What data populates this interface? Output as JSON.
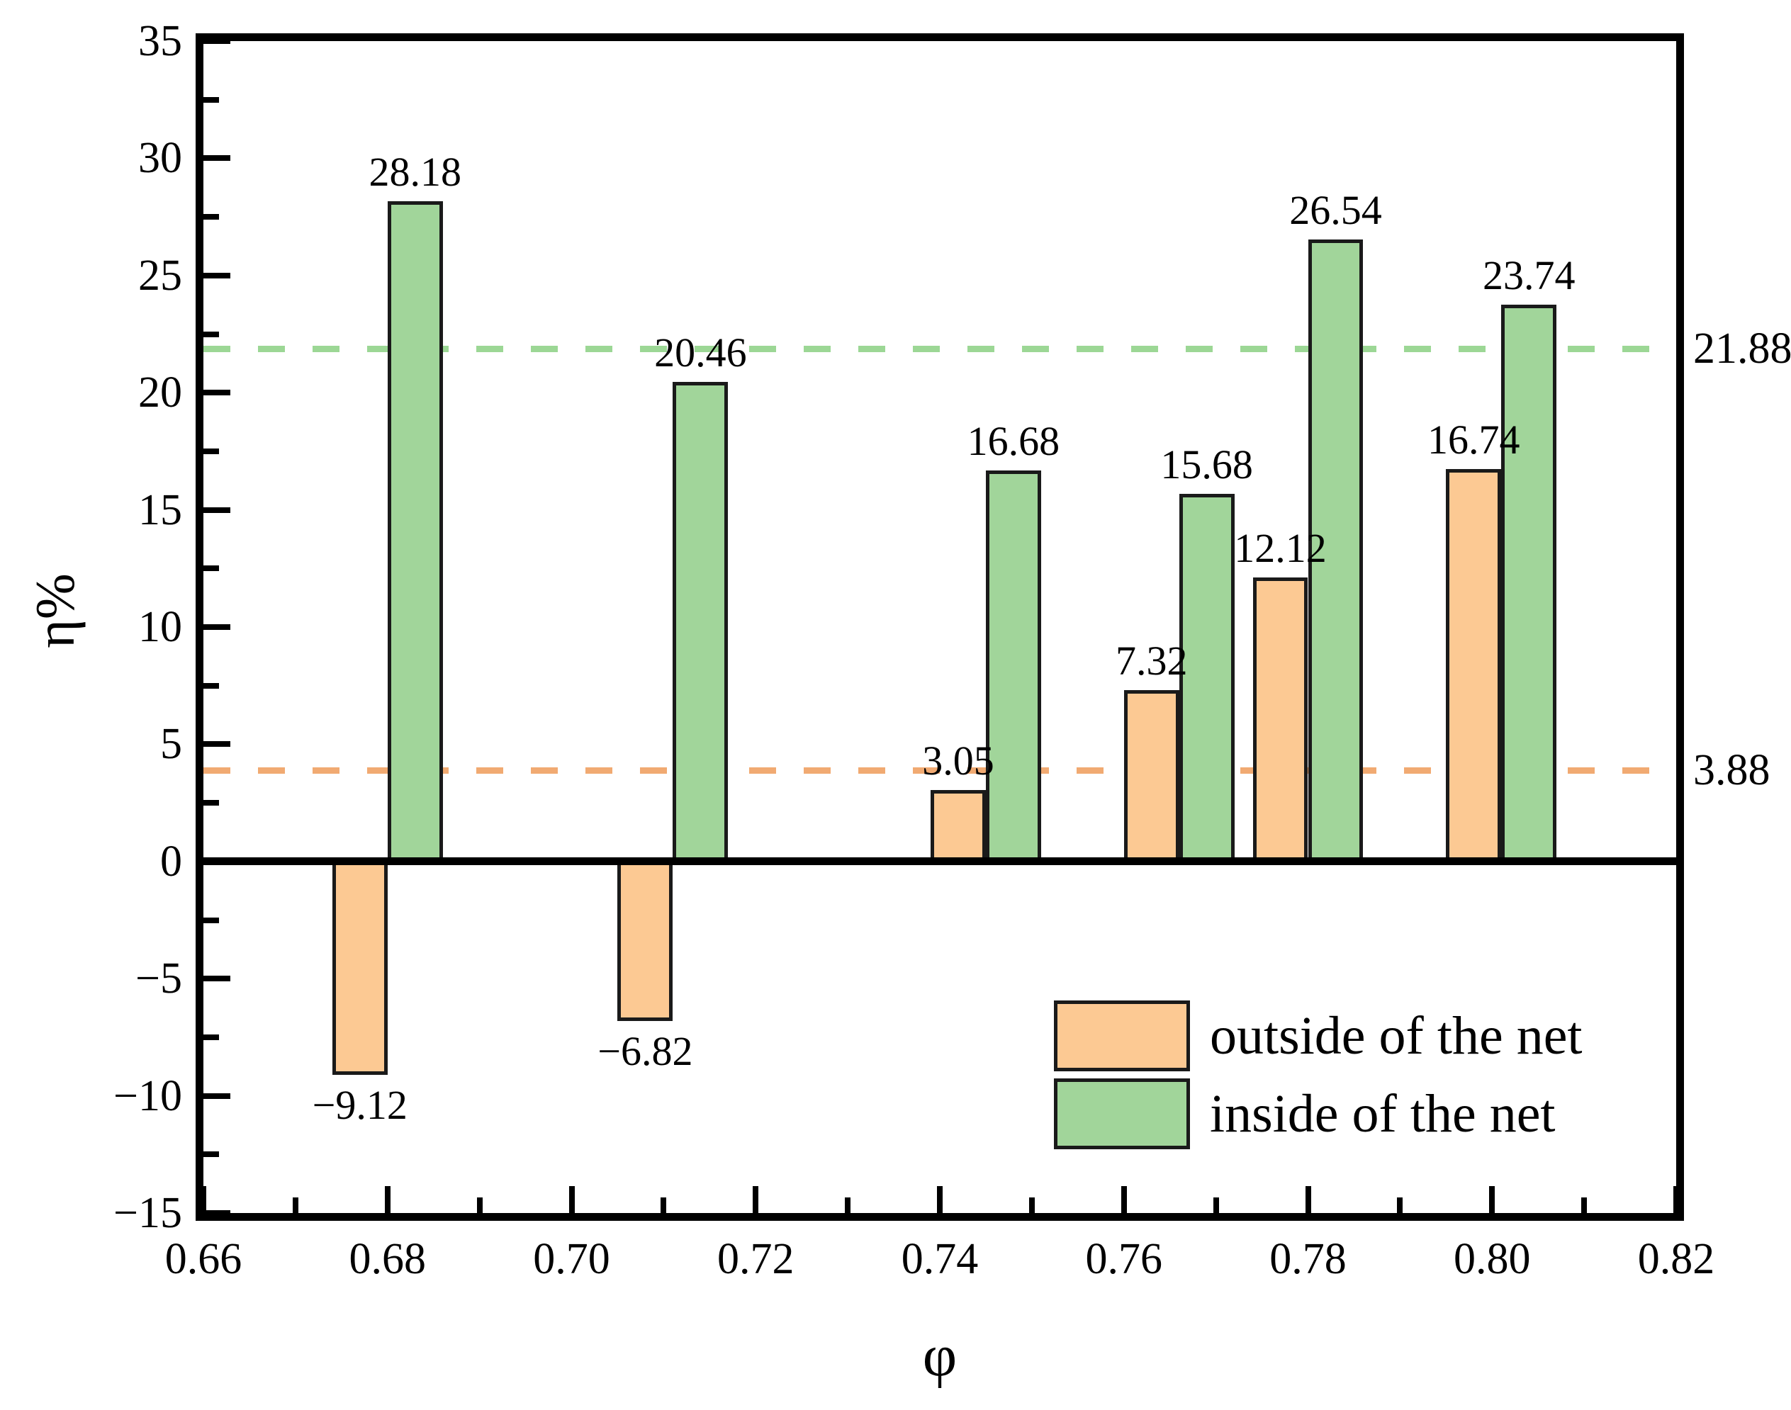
{
  "figure": {
    "background": "#ffffff",
    "axis_color": "#000000",
    "bar_edge_color": "#1a1a1a"
  },
  "chart_data": {
    "type": "bar",
    "title": "",
    "xlabel": "φ",
    "ylabel": "η%",
    "xlim": [
      0.66,
      0.82
    ],
    "ylim": [
      -15,
      35
    ],
    "x_major_ticks": [
      0.66,
      0.68,
      0.7,
      0.72,
      0.74,
      0.76,
      0.78,
      0.8,
      0.82
    ],
    "x_tick_labels": [
      "0.66",
      "0.68",
      "0.70",
      "0.72",
      "0.74",
      "0.76",
      "0.78",
      "0.80",
      "0.82"
    ],
    "x_minor_ticks": [
      0.67,
      0.69,
      0.71,
      0.73,
      0.75,
      0.77,
      0.79,
      0.81
    ],
    "y_major_ticks": [
      -15,
      -10,
      -5,
      0,
      5,
      10,
      15,
      20,
      25,
      30,
      35
    ],
    "y_tick_labels": [
      "−15",
      "−10",
      "−5",
      "0",
      "5",
      "10",
      "15",
      "20",
      "25",
      "30",
      "35"
    ],
    "y_minor_ticks": [
      -12.5,
      -7.5,
      -2.5,
      2.5,
      7.5,
      12.5,
      17.5,
      22.5,
      27.5,
      32.5
    ],
    "grid": false,
    "bar_width": 0.006,
    "x": [
      0.68,
      0.711,
      0.745,
      0.766,
      0.78,
      0.801
    ],
    "series": [
      {
        "name": "outside of the net",
        "color": "#FCC993",
        "side": "left",
        "values": [
          -9.12,
          -6.82,
          3.05,
          7.32,
          12.12,
          16.74
        ],
        "value_labels": [
          "−9.12",
          "−6.82",
          "3.05",
          "7.32",
          "12.12",
          "16.74"
        ],
        "mean_line": {
          "value": 3.88,
          "label": "3.88",
          "color": "#F1AA72",
          "style": "dashed"
        }
      },
      {
        "name": "inside of the net",
        "color": "#A1D59A",
        "side": "right",
        "values": [
          28.18,
          20.46,
          16.68,
          15.68,
          26.54,
          23.74
        ],
        "value_labels": [
          "28.18",
          "20.46",
          "16.68",
          "15.68",
          "26.54",
          "23.74"
        ],
        "mean_line": {
          "value": 21.88,
          "label": "21.88",
          "color": "#9CD795",
          "style": "dashed"
        }
      }
    ],
    "legend": {
      "position": "lower-right",
      "items": [
        {
          "label": "outside of the net",
          "color": "#FCC993"
        },
        {
          "label": "inside of the net",
          "color": "#A1D59A"
        }
      ]
    }
  }
}
